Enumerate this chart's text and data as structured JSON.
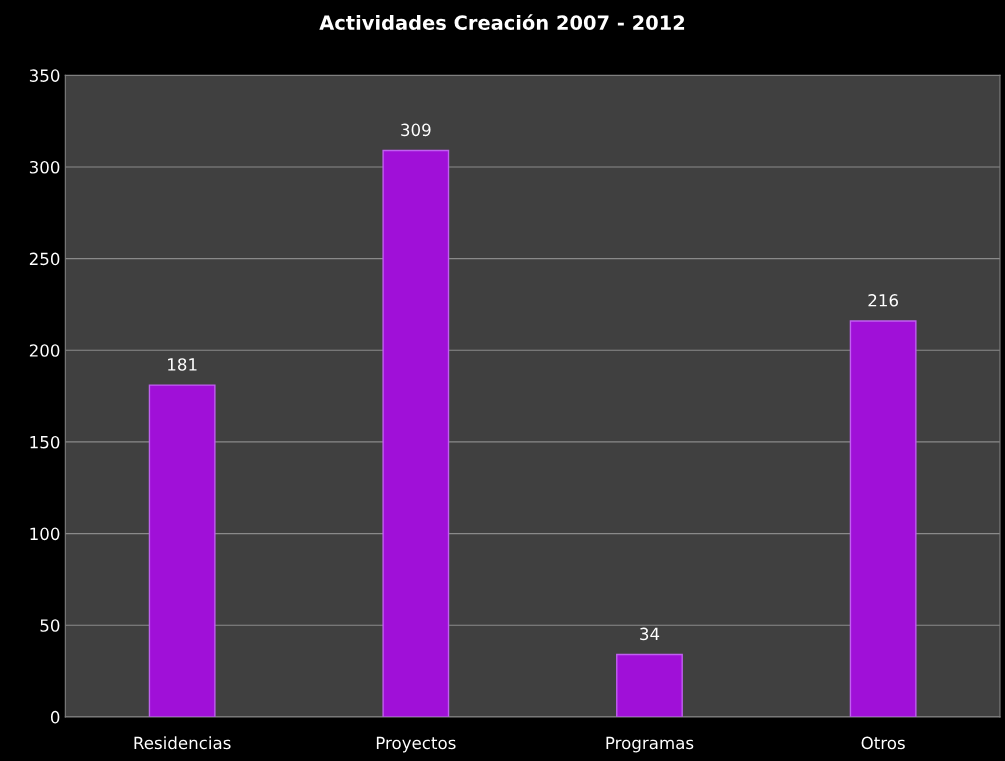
{
  "chart_data": {
    "type": "bar",
    "title": "Actividades Creación 2007 - 2012",
    "categories": [
      "Residencias",
      "Proyectos",
      "Programas",
      "Otros"
    ],
    "values": [
      181,
      309,
      34,
      216
    ],
    "color": "#a010d8",
    "ylim": [
      0,
      350
    ],
    "yticks": [
      0,
      50,
      100,
      150,
      200,
      250,
      300,
      350
    ],
    "grid": "y",
    "data_labels": true
  }
}
